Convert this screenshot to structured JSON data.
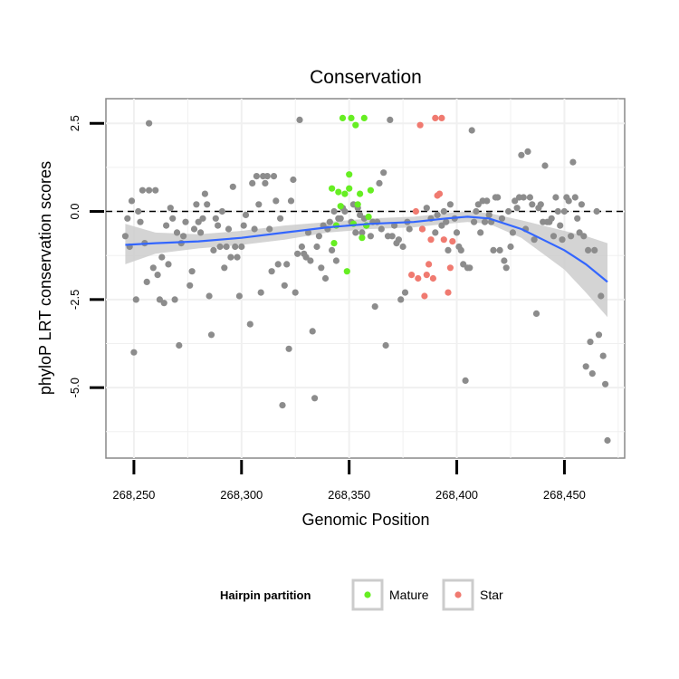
{
  "chart_data": {
    "type": "scatter",
    "title": "Conservation",
    "xlabel": "Genomic Position",
    "ylabel": "phyloP LRT conservation scores",
    "xlim": [
      268237,
      268478
    ],
    "ylim": [
      -7.0,
      3.2
    ],
    "x_ticks": [
      268250,
      268300,
      268350,
      268400,
      268450
    ],
    "x_tick_labels": [
      "268,250",
      "268,300",
      "268,350",
      "268,400",
      "268,450"
    ],
    "y_ticks": [
      2.5,
      0.0,
      -2.5,
      -5.0
    ],
    "y_tick_labels": [
      "2.5",
      "0.0",
      "-2.5",
      "-5.0"
    ],
    "reference_line_y": 0,
    "grid": true,
    "legend": {
      "title": "Hairpin partition",
      "position": "bottom",
      "entries": [
        {
          "label": "Mature",
          "color": "#66ee22"
        },
        {
          "label": "Star",
          "color": "#f07a70"
        }
      ]
    },
    "colors": {
      "other": "#8c8c8c",
      "mature": "#66ee22",
      "star": "#f07a70",
      "smooth": "#3366ff",
      "band": "#cccccc"
    },
    "series": [
      {
        "group": "other",
        "points": [
          [
            268246,
            -0.7
          ],
          [
            268247,
            -0.2
          ],
          [
            268248,
            -1.0
          ],
          [
            268249,
            0.3
          ],
          [
            268250,
            -4.0
          ],
          [
            268251,
            -2.5
          ],
          [
            268252,
            0.0
          ],
          [
            268253,
            -0.3
          ],
          [
            268254,
            0.6
          ],
          [
            268255,
            -0.9
          ],
          [
            268256,
            -2.0
          ],
          [
            268257,
            2.5
          ],
          [
            268257,
            0.6
          ],
          [
            268259,
            -1.6
          ],
          [
            268260,
            0.6
          ],
          [
            268261,
            -1.8
          ],
          [
            268262,
            -2.5
          ],
          [
            268263,
            -1.3
          ],
          [
            268264,
            -2.6
          ],
          [
            268265,
            -0.4
          ],
          [
            268266,
            -1.5
          ],
          [
            268267,
            0.1
          ],
          [
            268268,
            -0.2
          ],
          [
            268269,
            -2.5
          ],
          [
            268270,
            -0.6
          ],
          [
            268271,
            -3.8
          ],
          [
            268272,
            -0.9
          ],
          [
            268273,
            -0.7
          ],
          [
            268274,
            -0.3
          ],
          [
            268276,
            -2.1
          ],
          [
            268277,
            -1.7
          ],
          [
            268278,
            -0.5
          ],
          [
            268279,
            0.2
          ],
          [
            268280,
            -0.3
          ],
          [
            268281,
            -0.6
          ],
          [
            268282,
            -0.2
          ],
          [
            268283,
            0.5
          ],
          [
            268284,
            0.2
          ],
          [
            268285,
            -2.4
          ],
          [
            268286,
            -3.5
          ],
          [
            268287,
            -1.1
          ],
          [
            268288,
            -0.2
          ],
          [
            268289,
            -0.4
          ],
          [
            268290,
            -1.0
          ],
          [
            268291,
            0.0
          ],
          [
            268292,
            -1.6
          ],
          [
            268293,
            -1.0
          ],
          [
            268294,
            -0.5
          ],
          [
            268295,
            -1.3
          ],
          [
            268296,
            0.7
          ],
          [
            268297,
            -1.0
          ],
          [
            268298,
            -1.3
          ],
          [
            268299,
            -2.4
          ],
          [
            268300,
            -1.0
          ],
          [
            268301,
            -0.4
          ],
          [
            268302,
            -0.1
          ],
          [
            268304,
            -3.2
          ],
          [
            268305,
            0.8
          ],
          [
            268306,
            -0.5
          ],
          [
            268307,
            1.0
          ],
          [
            268308,
            0.2
          ],
          [
            268309,
            -2.3
          ],
          [
            268310,
            1.0
          ],
          [
            268311,
            0.8
          ],
          [
            268312,
            1.0
          ],
          [
            268313,
            -0.5
          ],
          [
            268314,
            -1.7
          ],
          [
            268315,
            1.0
          ],
          [
            268316,
            0.3
          ],
          [
            268317,
            -1.5
          ],
          [
            268318,
            -0.2
          ],
          [
            268319,
            -5.5
          ],
          [
            268320,
            -2.1
          ],
          [
            268321,
            -1.5
          ],
          [
            268322,
            -3.9
          ],
          [
            268323,
            0.3
          ],
          [
            268324,
            0.9
          ],
          [
            268325,
            -2.3
          ],
          [
            268326,
            -1.2
          ],
          [
            268327,
            2.6
          ],
          [
            268328,
            -1.0
          ],
          [
            268329,
            -1.2
          ],
          [
            268330,
            -1.3
          ],
          [
            268331,
            -0.6
          ],
          [
            268332,
            -1.4
          ],
          [
            268333,
            -3.4
          ],
          [
            268334,
            -5.3
          ],
          [
            268335,
            -1.0
          ],
          [
            268336,
            -0.7
          ],
          [
            268337,
            -1.6
          ],
          [
            268338,
            -0.4
          ],
          [
            268339,
            -1.9
          ],
          [
            268340,
            -0.5
          ],
          [
            268341,
            -0.3
          ],
          [
            268342,
            -1.1
          ],
          [
            268343,
            0.0
          ],
          [
            268344,
            -1.4
          ],
          [
            268345,
            -0.2
          ],
          [
            268346,
            -0.2
          ],
          [
            268347,
            0.1
          ],
          [
            268348,
            0.0
          ],
          [
            268351,
            -0.3
          ],
          [
            268352,
            0.2
          ],
          [
            268353,
            -0.6
          ],
          [
            268354,
            0.1
          ],
          [
            268355,
            -0.1
          ],
          [
            268356,
            -0.6
          ],
          [
            268357,
            -0.2
          ],
          [
            268358,
            -0.4
          ],
          [
            268360,
            -0.7
          ],
          [
            268361,
            -0.3
          ],
          [
            268362,
            -2.7
          ],
          [
            268363,
            -0.3
          ],
          [
            268364,
            0.8
          ],
          [
            268365,
            -0.5
          ],
          [
            268366,
            1.1
          ],
          [
            268367,
            -3.8
          ],
          [
            268368,
            -0.7
          ],
          [
            268369,
            2.6
          ],
          [
            268370,
            -0.7
          ],
          [
            268371,
            -0.4
          ],
          [
            268372,
            -0.9
          ],
          [
            268373,
            -0.8
          ],
          [
            268374,
            -2.5
          ],
          [
            268375,
            -1.0
          ],
          [
            268376,
            -2.3
          ],
          [
            268377,
            -0.3
          ],
          [
            268378,
            -0.5
          ],
          [
            268384,
            -0.5
          ],
          [
            268386,
            0.1
          ],
          [
            268388,
            -0.2
          ],
          [
            268390,
            -0.6
          ],
          [
            268391,
            -0.1
          ],
          [
            268393,
            -0.4
          ],
          [
            268394,
            0.0
          ],
          [
            268395,
            -0.3
          ],
          [
            268396,
            -1.1
          ],
          [
            268397,
            0.2
          ],
          [
            268399,
            -0.2
          ],
          [
            268400,
            -0.6
          ],
          [
            268401,
            -1.0
          ],
          [
            268402,
            -1.1
          ],
          [
            268403,
            -1.5
          ],
          [
            268404,
            -4.8
          ],
          [
            268405,
            -1.6
          ],
          [
            268406,
            -1.6
          ],
          [
            268407,
            2.3
          ],
          [
            268408,
            -0.3
          ],
          [
            268409,
            0.0
          ],
          [
            268410,
            0.2
          ],
          [
            268411,
            -0.6
          ],
          [
            268412,
            0.3
          ],
          [
            268413,
            -0.3
          ],
          [
            268414,
            0.3
          ],
          [
            268415,
            -0.1
          ],
          [
            268416,
            -0.3
          ],
          [
            268417,
            -1.1
          ],
          [
            268418,
            0.4
          ],
          [
            268419,
            0.4
          ],
          [
            268420,
            -1.1
          ],
          [
            268421,
            -0.2
          ],
          [
            268422,
            -1.4
          ],
          [
            268423,
            -1.6
          ],
          [
            268424,
            0.0
          ],
          [
            268425,
            -1.0
          ],
          [
            268426,
            -0.6
          ],
          [
            268427,
            0.3
          ],
          [
            268428,
            0.1
          ],
          [
            268429,
            0.4
          ],
          [
            268430,
            1.6
          ],
          [
            268431,
            0.4
          ],
          [
            268432,
            -0.5
          ],
          [
            268433,
            1.7
          ],
          [
            268434,
            0.4
          ],
          [
            268435,
            0.2
          ],
          [
            268436,
            -0.8
          ],
          [
            268437,
            -2.9
          ],
          [
            268438,
            0.1
          ],
          [
            268439,
            0.2
          ],
          [
            268440,
            -0.3
          ],
          [
            268441,
            1.3
          ],
          [
            268442,
            -0.3
          ],
          [
            268443,
            -0.3
          ],
          [
            268444,
            -0.2
          ],
          [
            268445,
            -0.7
          ],
          [
            268446,
            0.4
          ],
          [
            268447,
            0.0
          ],
          [
            268448,
            -0.4
          ],
          [
            268449,
            -0.8
          ],
          [
            268450,
            0.0
          ],
          [
            268451,
            0.4
          ],
          [
            268452,
            0.3
          ],
          [
            268453,
            -0.7
          ],
          [
            268454,
            1.4
          ],
          [
            268455,
            0.4
          ],
          [
            268456,
            -0.2
          ],
          [
            268457,
            -0.6
          ],
          [
            268458,
            0.2
          ],
          [
            268459,
            -0.7
          ],
          [
            268460,
            -4.4
          ],
          [
            268461,
            -1.1
          ],
          [
            268462,
            -3.7
          ],
          [
            268463,
            -4.6
          ],
          [
            268464,
            -1.1
          ],
          [
            268465,
            0.0
          ],
          [
            268466,
            -3.5
          ],
          [
            268467,
            -2.4
          ],
          [
            268468,
            -4.1
          ],
          [
            268469,
            -4.9
          ],
          [
            268470,
            -6.5
          ]
        ]
      },
      {
        "group": "mature",
        "points": [
          [
            268342,
            0.65
          ],
          [
            268343,
            -0.9
          ],
          [
            268344,
            -0.4
          ],
          [
            268345,
            0.55
          ],
          [
            268346,
            0.15
          ],
          [
            268347,
            2.65
          ],
          [
            268348,
            0.5
          ],
          [
            268349,
            -1.7
          ],
          [
            268350,
            1.05
          ],
          [
            268350,
            0.65
          ],
          [
            268351,
            2.65
          ],
          [
            268352,
            -0.35
          ],
          [
            268353,
            2.45
          ],
          [
            268354,
            0.2
          ],
          [
            268355,
            0.5
          ],
          [
            268356,
            -0.75
          ],
          [
            268357,
            2.65
          ],
          [
            268358,
            -0.4
          ],
          [
            268359,
            -0.15
          ],
          [
            268360,
            0.6
          ]
        ]
      },
      {
        "group": "star",
        "points": [
          [
            268379,
            -1.8
          ],
          [
            268381,
            0.0
          ],
          [
            268382,
            -1.9
          ],
          [
            268383,
            2.45
          ],
          [
            268384,
            -0.5
          ],
          [
            268385,
            -2.4
          ],
          [
            268386,
            -1.8
          ],
          [
            268387,
            -1.5
          ],
          [
            268388,
            -0.8
          ],
          [
            268389,
            -1.9
          ],
          [
            268390,
            2.65
          ],
          [
            268391,
            0.45
          ],
          [
            268392,
            0.5
          ],
          [
            268393,
            2.65
          ],
          [
            268394,
            -0.8
          ],
          [
            268396,
            -2.3
          ],
          [
            268397,
            -1.6
          ],
          [
            268398,
            -0.85
          ]
        ]
      }
    ],
    "smooth": {
      "x": [
        268246,
        268260,
        268280,
        268300,
        268320,
        268340,
        268360,
        268380,
        268395,
        268405,
        268415,
        268430,
        268440,
        268450,
        268460,
        268470
      ],
      "y": [
        -0.95,
        -0.9,
        -0.85,
        -0.75,
        -0.6,
        -0.45,
        -0.35,
        -0.3,
        -0.2,
        -0.15,
        -0.2,
        -0.5,
        -0.8,
        -1.1,
        -1.5,
        -2.0
      ],
      "lower": [
        -1.5,
        -1.2,
        -1.05,
        -0.95,
        -0.8,
        -0.6,
        -0.5,
        -0.45,
        -0.35,
        -0.3,
        -0.35,
        -0.75,
        -1.2,
        -1.65,
        -2.3,
        -3.0
      ],
      "upper": [
        -0.35,
        -0.6,
        -0.65,
        -0.55,
        -0.4,
        -0.3,
        -0.2,
        -0.15,
        -0.05,
        0.0,
        -0.05,
        -0.25,
        -0.4,
        -0.55,
        -0.7,
        -0.9
      ]
    }
  }
}
